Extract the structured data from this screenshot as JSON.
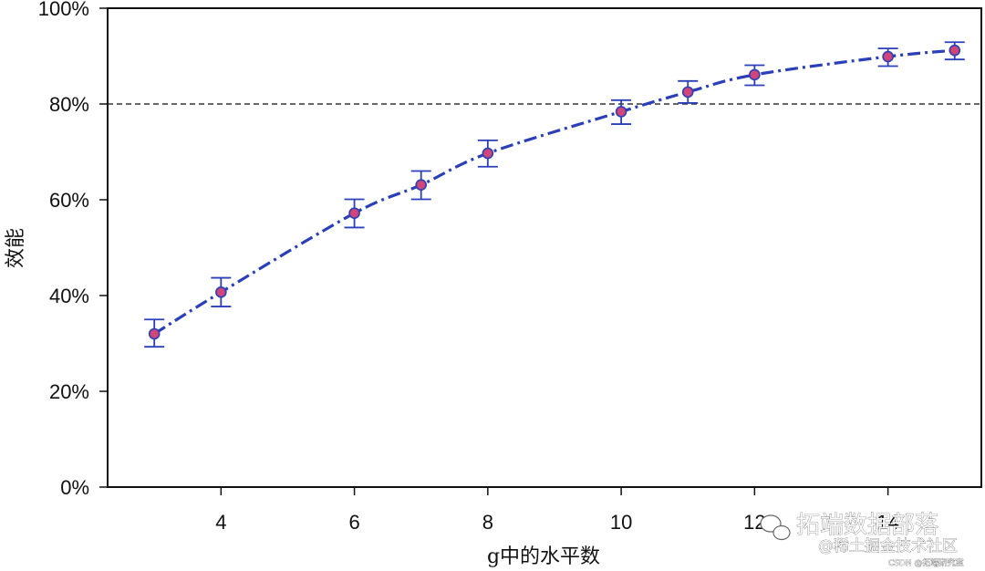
{
  "chart_data": {
    "type": "line",
    "xlabel": "g中的水平数",
    "ylabel": "效能",
    "xlim": [
      2.3,
      15.4
    ],
    "ylim": [
      0,
      100
    ],
    "x_ticks": [
      4,
      6,
      8,
      10,
      12,
      14
    ],
    "x_tick_labels": [
      "4",
      "6",
      "8",
      "10",
      "12",
      "14"
    ],
    "y_ticks": [
      0,
      20,
      40,
      60,
      80,
      100
    ],
    "y_tick_labels": [
      "0%",
      "20%",
      "40%",
      "60%",
      "80%",
      "100%"
    ],
    "reference_line": {
      "y": 80,
      "style": "dashed"
    },
    "series": [
      {
        "x": [
          3,
          4,
          6,
          7,
          8,
          10,
          11,
          12,
          14,
          15
        ],
        "y": [
          32.0,
          40.7,
          57.2,
          63.1,
          69.7,
          78.4,
          82.5,
          86.1,
          89.9,
          91.2
        ],
        "err_low": [
          29.3,
          37.7,
          54.2,
          60.1,
          66.9,
          75.8,
          80.2,
          83.9,
          87.9,
          89.3
        ],
        "err_high": [
          35.0,
          43.7,
          60.1,
          66.0,
          72.4,
          80.8,
          84.8,
          88.1,
          91.6,
          92.9
        ]
      }
    ],
    "grid": false,
    "colors": {
      "line": "#2a3fb8",
      "marker_fill": "#d0457a",
      "marker_edge": "#2a3fb8",
      "errorbar": "#2a3fb8",
      "reference_line": "#333333"
    }
  },
  "watermark": {
    "line1": "拓端数据部落",
    "line2": "@稀土掘金技术社区",
    "line3": "CSDN @拓端研究室"
  }
}
